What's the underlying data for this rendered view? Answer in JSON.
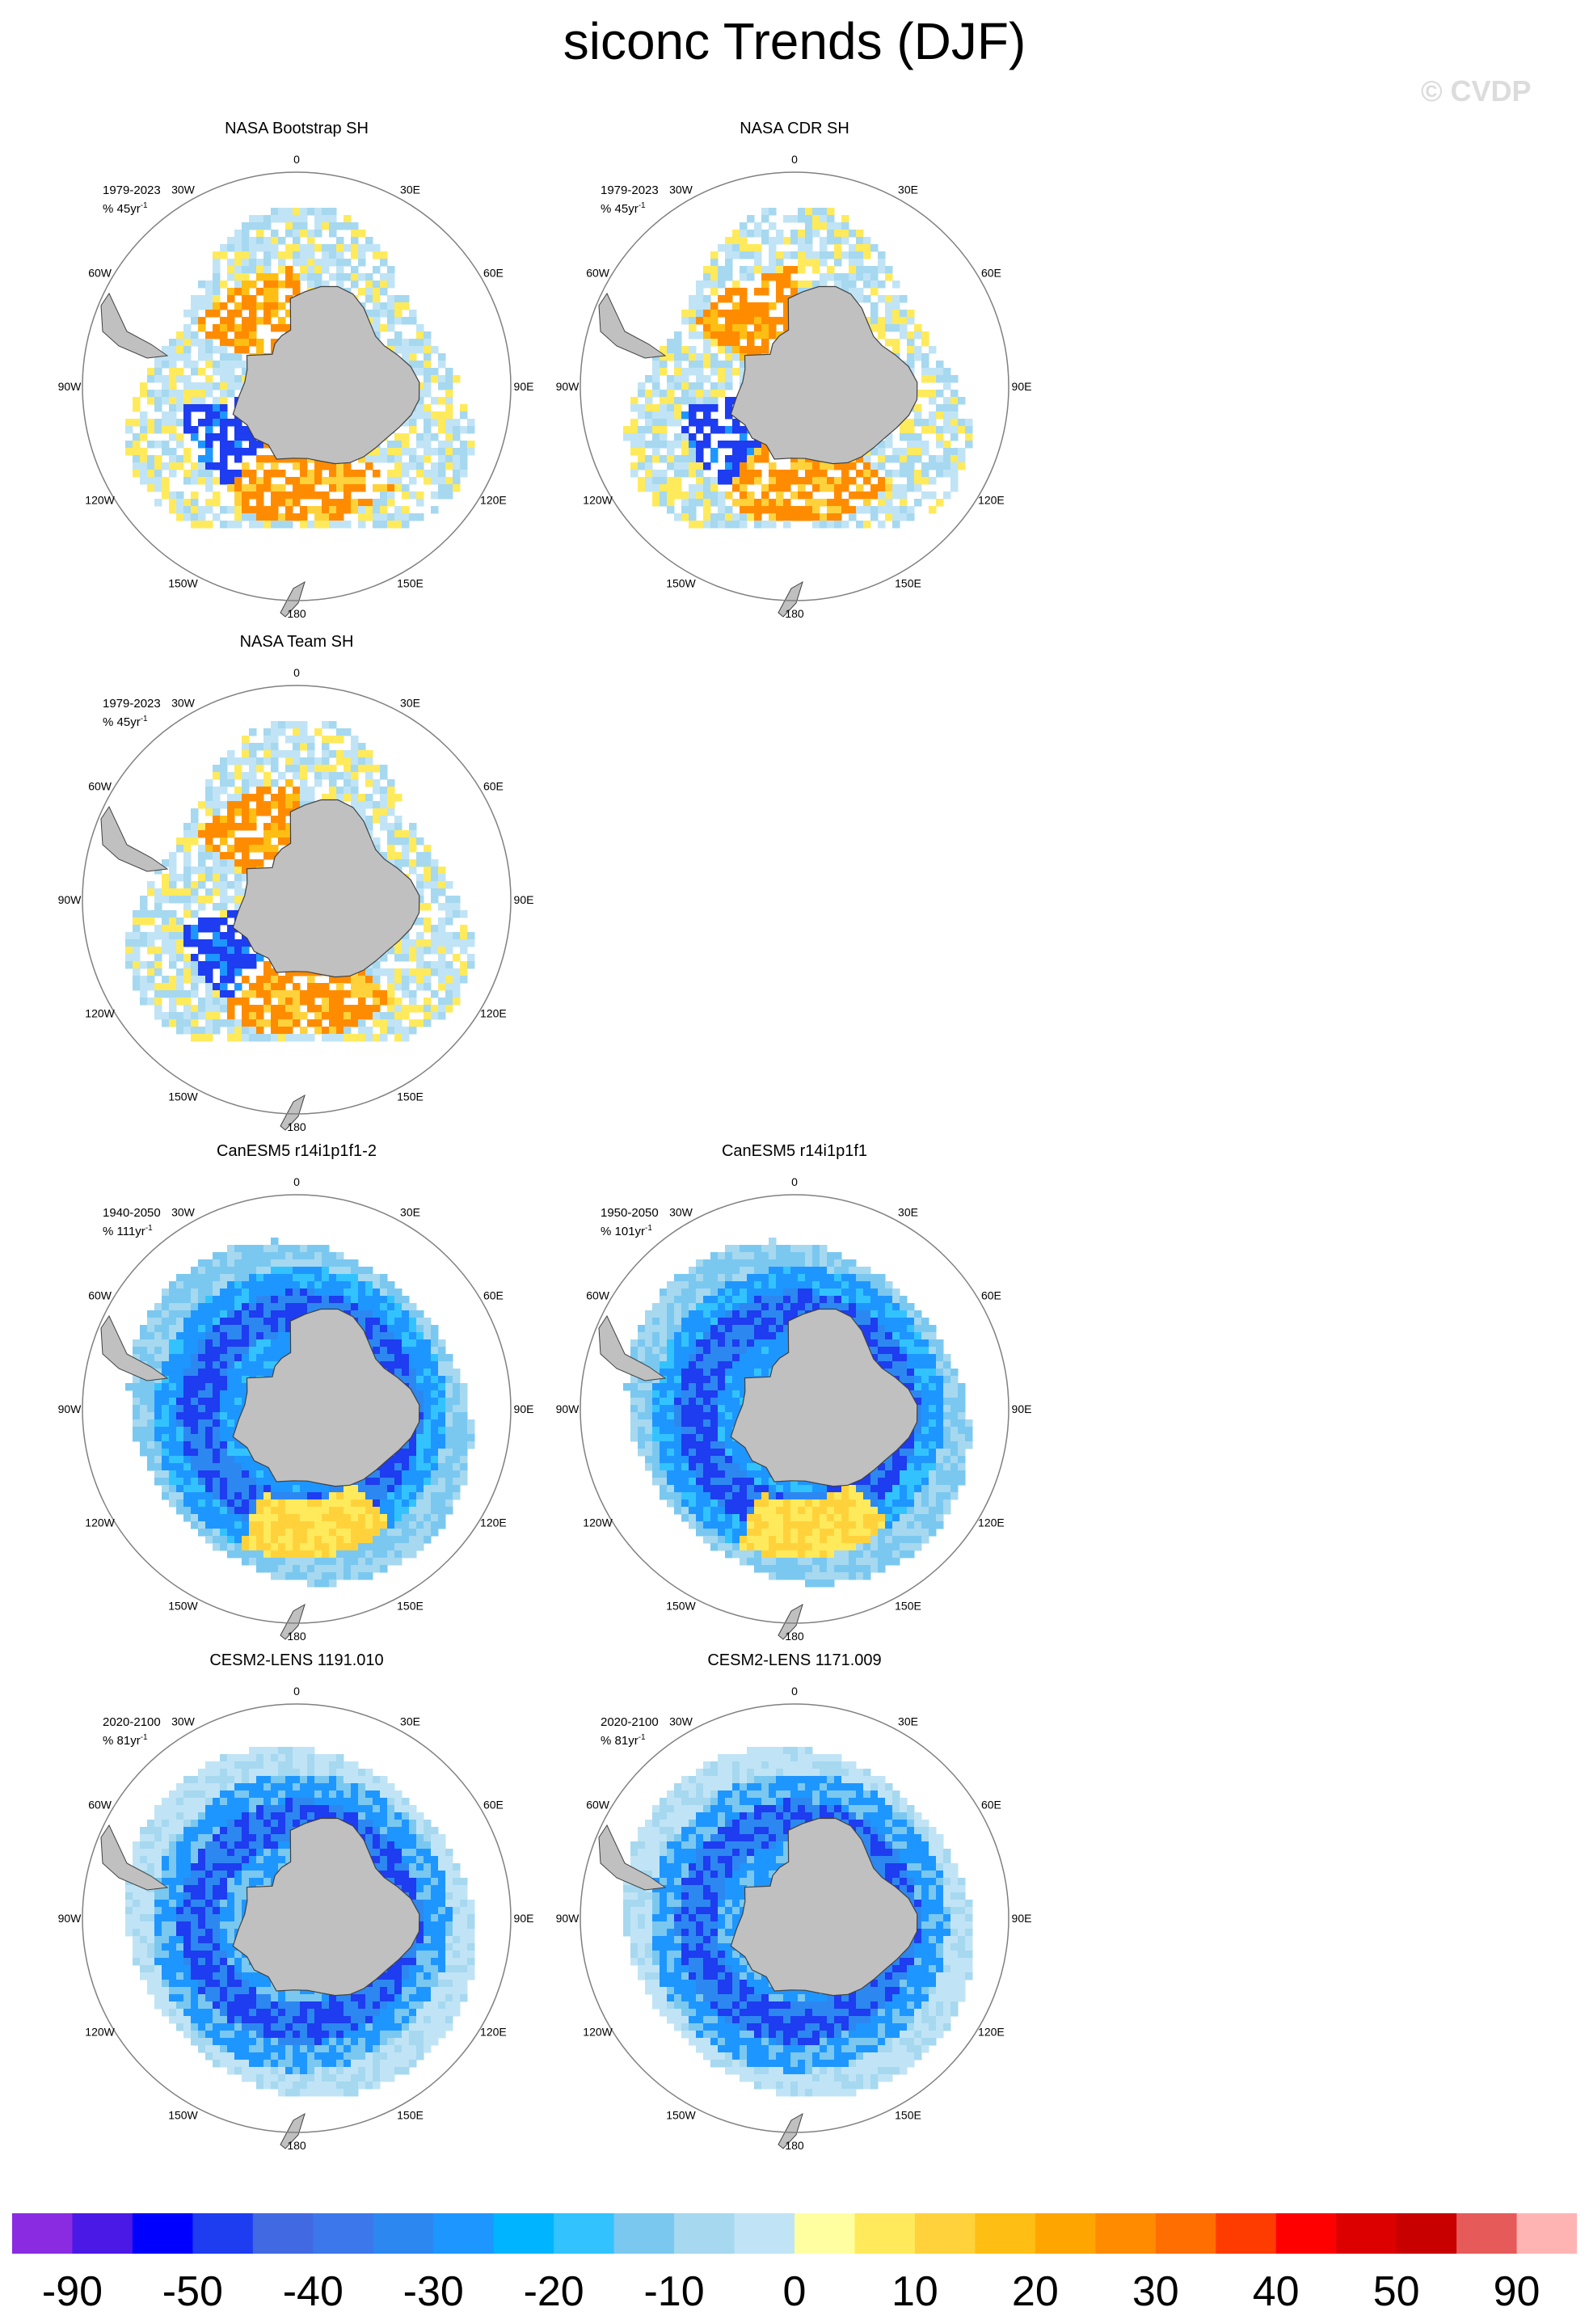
{
  "title": "siconc Trends (DJF)",
  "watermark": "© CVDP",
  "chart_data": {
    "type": "heatmap",
    "projection": "south-polar-stereographic",
    "units": "% per period",
    "panels": [
      {
        "title": "NASA Bootstrap SH",
        "period": "1979-2023",
        "units_prefix": "% 45yr",
        "units_exp": "-1",
        "pattern": "obs"
      },
      {
        "title": "NASA CDR SH",
        "period": "1979-2023",
        "units_prefix": "% 45yr",
        "units_exp": "-1",
        "pattern": "obs"
      },
      {
        "title": "NASA Team SH",
        "period": "1979-2023",
        "units_prefix": "% 45yr",
        "units_exp": "-1",
        "pattern": "obs"
      },
      {
        "title": "CanESM5 r14i1p1f1-2",
        "period": "1940-2050",
        "units_prefix": "% 111yr",
        "units_exp": "-1",
        "pattern": "canesm"
      },
      {
        "title": "CanESM5 r14i1p1f1",
        "period": "1950-2050",
        "units_prefix": "% 101yr",
        "units_exp": "-1",
        "pattern": "canesm"
      },
      {
        "title": "CESM2-LENS 1191.010",
        "period": "2020-2100",
        "units_prefix": "% 81yr",
        "units_exp": "-1",
        "pattern": "cesm"
      },
      {
        "title": "CESM2-LENS 1171.009",
        "period": "2020-2100",
        "units_prefix": "% 81yr",
        "units_exp": "-1",
        "pattern": "cesm"
      }
    ],
    "longitude_labels": [
      "0",
      "30E",
      "60E",
      "90E",
      "120E",
      "150E",
      "180",
      "150W",
      "120W",
      "90W",
      "60W",
      "30W"
    ],
    "colorbar": {
      "colors": [
        "#8a2be2",
        "#4b19e6",
        "#0000ff",
        "#1e3cf0",
        "#4169e1",
        "#3c78eb",
        "#2d87f0",
        "#1e96ff",
        "#00b4ff",
        "#32c3ff",
        "#7ac8f0",
        "#a6d8f0",
        "#c0e4f5",
        "#ffffa0",
        "#ffea5c",
        "#ffd23c",
        "#ffbe14",
        "#ffa500",
        "#ff8c00",
        "#ff6e00",
        "#ff3c00",
        "#ff0000",
        "#dc0000",
        "#c80000",
        "#e65a5a",
        "#ffb4b4"
      ],
      "tick_labels": [
        "-90",
        "-50",
        "-40",
        "-30",
        "-20",
        "-10",
        "0",
        "10",
        "20",
        "30",
        "40",
        "50",
        "90"
      ]
    }
  }
}
